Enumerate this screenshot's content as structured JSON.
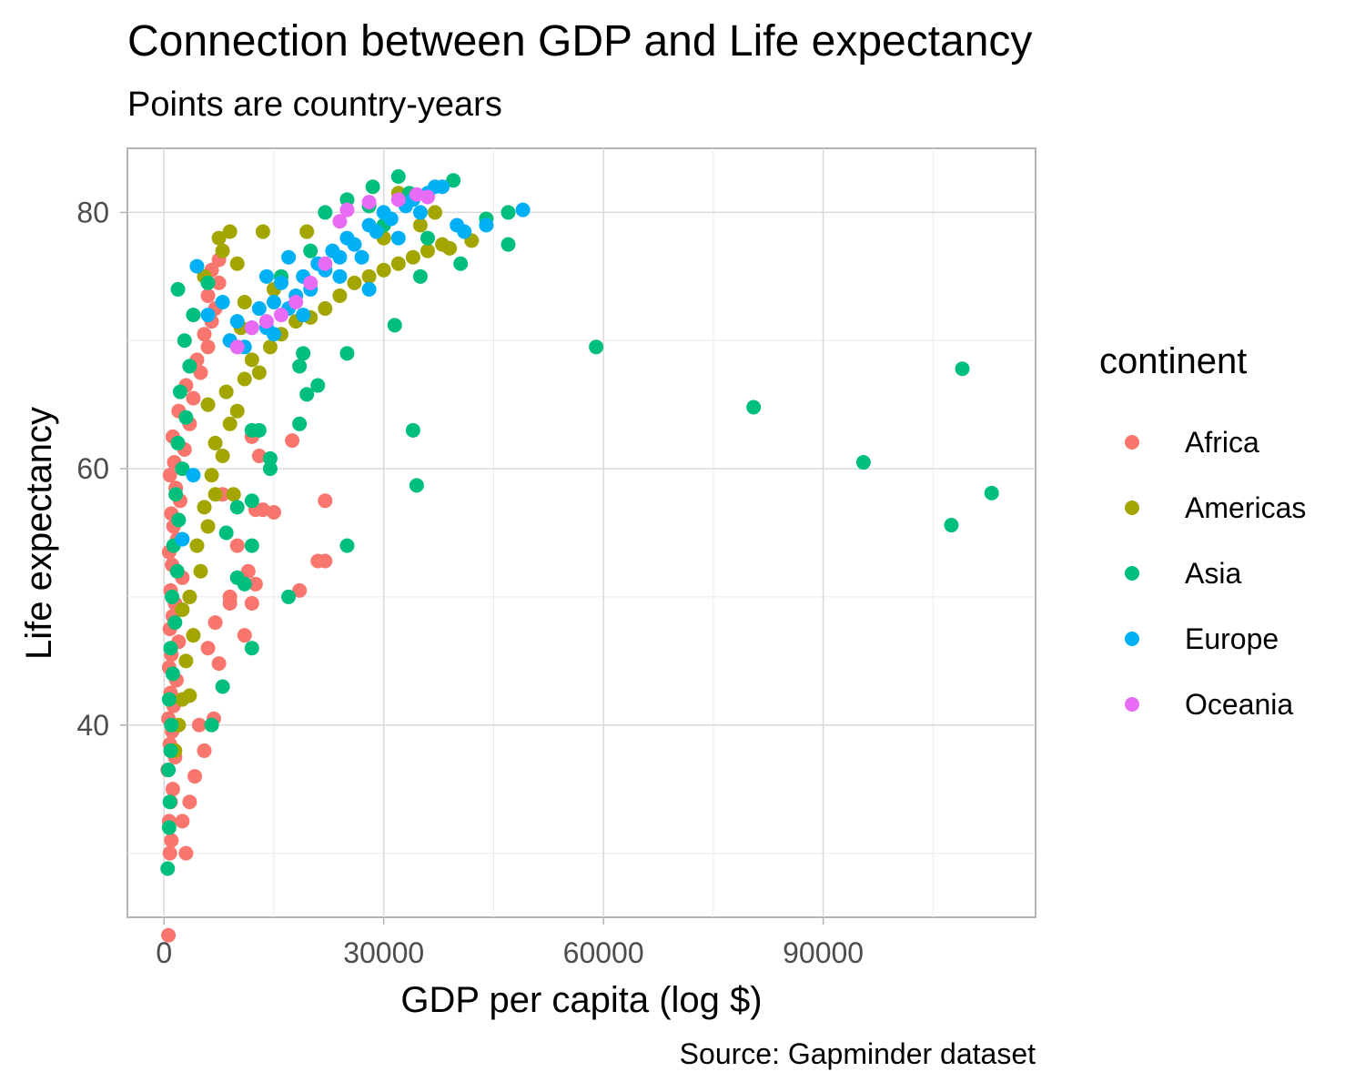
{
  "chart_data": {
    "type": "scatter",
    "title": "Connection between GDP and Life expectancy",
    "subtitle": "Points are country-years",
    "caption": "Source: Gapminder dataset",
    "xlabel": "GDP per capita (log $)",
    "ylabel": "Life expectancy",
    "xlim": [
      -5000,
      119000
    ],
    "ylim": [
      25,
      85
    ],
    "x_ticks": [
      0,
      30000,
      60000,
      90000
    ],
    "y_ticks": [
      40,
      60,
      80
    ],
    "grid": true,
    "legend": {
      "title": "continent",
      "position": "right"
    },
    "series": [
      {
        "name": "Africa",
        "color": "#F8766D",
        "points": [
          [
            600,
            23.6
          ],
          [
            800,
            30.0
          ],
          [
            1000,
            31.0
          ],
          [
            700,
            32.5
          ],
          [
            900,
            34.0
          ],
          [
            1200,
            35.0
          ],
          [
            500,
            36.5
          ],
          [
            1500,
            37.5
          ],
          [
            800,
            38.5
          ],
          [
            1100,
            39.5
          ],
          [
            600,
            40.5
          ],
          [
            1300,
            41.5
          ],
          [
            900,
            42.5
          ],
          [
            1700,
            43.5
          ],
          [
            700,
            44.5
          ],
          [
            1000,
            45.5
          ],
          [
            2000,
            46.5
          ],
          [
            800,
            47.5
          ],
          [
            1200,
            48.5
          ],
          [
            1500,
            49.5
          ],
          [
            900,
            50.5
          ],
          [
            2500,
            51.5
          ],
          [
            1100,
            52.5
          ],
          [
            700,
            53.5
          ],
          [
            1800,
            54.5
          ],
          [
            1300,
            55.5
          ],
          [
            1000,
            56.5
          ],
          [
            2200,
            57.5
          ],
          [
            1600,
            58.5
          ],
          [
            800,
            59.5
          ],
          [
            1400,
            60.5
          ],
          [
            2800,
            61.5
          ],
          [
            1200,
            62.5
          ],
          [
            3500,
            63.5
          ],
          [
            2000,
            64.5
          ],
          [
            4000,
            65.5
          ],
          [
            3000,
            66.5
          ],
          [
            5000,
            67.5
          ],
          [
            4500,
            68.5
          ],
          [
            6000,
            69.5
          ],
          [
            5500,
            70.5
          ],
          [
            6500,
            71.5
          ],
          [
            7000,
            72.5
          ],
          [
            6000,
            73.5
          ],
          [
            7500,
            74.5
          ],
          [
            6500,
            75.5
          ],
          [
            7500,
            76.3
          ],
          [
            3000,
            30.0
          ],
          [
            2500,
            32.5
          ],
          [
            3500,
            34.0
          ],
          [
            4200,
            36.0
          ],
          [
            5500,
            38.0
          ],
          [
            4800,
            40.0
          ],
          [
            6800,
            40.5
          ],
          [
            7500,
            44.8
          ],
          [
            6000,
            46.0
          ],
          [
            7000,
            48.0
          ],
          [
            9000,
            49.5
          ],
          [
            11000,
            47.0
          ],
          [
            12000,
            49.5
          ],
          [
            12500,
            51.0
          ],
          [
            11500,
            52.0
          ],
          [
            8000,
            58.0
          ],
          [
            12500,
            56.8
          ],
          [
            13500,
            56.8
          ],
          [
            15000,
            56.6
          ],
          [
            13000,
            61.0
          ],
          [
            17500,
            62.2
          ],
          [
            12000,
            62.5
          ],
          [
            18500,
            50.5
          ],
          [
            21000,
            52.8
          ],
          [
            22000,
            52.8
          ],
          [
            22000,
            57.5
          ],
          [
            10000,
            54.0
          ],
          [
            9000,
            50.0
          ]
        ]
      },
      {
        "name": "Americas",
        "color": "#A3A500",
        "points": [
          [
            1500,
            38.0
          ],
          [
            2000,
            40.0
          ],
          [
            2500,
            42.0
          ],
          [
            3500,
            42.3
          ],
          [
            3000,
            45.0
          ],
          [
            4000,
            47.0
          ],
          [
            2500,
            49.0
          ],
          [
            3500,
            50.0
          ],
          [
            5000,
            52.0
          ],
          [
            4500,
            54.0
          ],
          [
            6000,
            55.5
          ],
          [
            5500,
            57.0
          ],
          [
            7000,
            58.0
          ],
          [
            6500,
            59.5
          ],
          [
            9500,
            58.0
          ],
          [
            8000,
            61.0
          ],
          [
            7000,
            62.0
          ],
          [
            9000,
            63.5
          ],
          [
            10000,
            64.5
          ],
          [
            6000,
            65.0
          ],
          [
            8500,
            66.0
          ],
          [
            11000,
            67.0
          ],
          [
            13000,
            67.5
          ],
          [
            12000,
            68.5
          ],
          [
            14500,
            69.5
          ],
          [
            9000,
            70.0
          ],
          [
            16000,
            70.5
          ],
          [
            10500,
            71.0
          ],
          [
            18000,
            71.5
          ],
          [
            20000,
            71.8
          ],
          [
            22000,
            72.5
          ],
          [
            24000,
            73.5
          ],
          [
            11000,
            73.0
          ],
          [
            15000,
            74.0
          ],
          [
            26000,
            74.5
          ],
          [
            28000,
            75.0
          ],
          [
            30000,
            75.5
          ],
          [
            32000,
            76.0
          ],
          [
            34000,
            76.5
          ],
          [
            36000,
            77.0
          ],
          [
            38000,
            77.5
          ],
          [
            39000,
            77.2
          ],
          [
            42000,
            77.8
          ],
          [
            7500,
            78.0
          ],
          [
            9000,
            78.5
          ],
          [
            13500,
            78.5
          ],
          [
            19500,
            78.5
          ],
          [
            30000,
            78.0
          ],
          [
            35000,
            79.0
          ],
          [
            37000,
            80.0
          ],
          [
            32000,
            81.5
          ],
          [
            5500,
            75.0
          ],
          [
            8000,
            77.0
          ],
          [
            10000,
            76.0
          ]
        ]
      },
      {
        "name": "Asia",
        "color": "#00BF7D",
        "points": [
          [
            500,
            28.8
          ],
          [
            700,
            32.0
          ],
          [
            800,
            34.0
          ],
          [
            600,
            36.5
          ],
          [
            900,
            38.0
          ],
          [
            1000,
            40.0
          ],
          [
            700,
            42.0
          ],
          [
            1200,
            44.0
          ],
          [
            900,
            46.0
          ],
          [
            1500,
            48.0
          ],
          [
            1100,
            50.0
          ],
          [
            1800,
            52.0
          ],
          [
            1300,
            54.0
          ],
          [
            2000,
            56.0
          ],
          [
            1600,
            58.0
          ],
          [
            2500,
            60.0
          ],
          [
            1900,
            62.0
          ],
          [
            3000,
            64.0
          ],
          [
            2200,
            66.0
          ],
          [
            3500,
            68.0
          ],
          [
            2800,
            70.0
          ],
          [
            4000,
            72.0
          ],
          [
            1900,
            74.0
          ],
          [
            6000,
            74.5
          ],
          [
            6500,
            40.0
          ],
          [
            8000,
            43.0
          ],
          [
            12000,
            46.0
          ],
          [
            17000,
            50.0
          ],
          [
            11000,
            51.0
          ],
          [
            10000,
            51.5
          ],
          [
            12000,
            54.0
          ],
          [
            8500,
            55.0
          ],
          [
            10000,
            57.0
          ],
          [
            12000,
            57.5
          ],
          [
            14500,
            60.0
          ],
          [
            14500,
            60.8
          ],
          [
            12000,
            63.0
          ],
          [
            13000,
            63.0
          ],
          [
            18500,
            63.5
          ],
          [
            34000,
            63.0
          ],
          [
            34500,
            58.7
          ],
          [
            25000,
            54.0
          ],
          [
            19500,
            65.8
          ],
          [
            21000,
            66.5
          ],
          [
            18500,
            68.0
          ],
          [
            19000,
            69.0
          ],
          [
            25000,
            69.0
          ],
          [
            31500,
            71.2
          ],
          [
            35000,
            75.0
          ],
          [
            40500,
            76.0
          ],
          [
            47000,
            77.5
          ],
          [
            47000,
            80.0
          ],
          [
            44000,
            79.5
          ],
          [
            36000,
            78.0
          ],
          [
            30000,
            79.0
          ],
          [
            28000,
            80.5
          ],
          [
            25000,
            81.0
          ],
          [
            32000,
            82.8
          ],
          [
            33500,
            81.5
          ],
          [
            39500,
            82.5
          ],
          [
            28500,
            82.0
          ],
          [
            59000,
            69.5
          ],
          [
            80500,
            64.8
          ],
          [
            95500,
            60.5
          ],
          [
            107500,
            55.6
          ],
          [
            109000,
            67.8
          ],
          [
            113000,
            58.1
          ],
          [
            22000,
            80.0
          ],
          [
            20000,
            77.0
          ],
          [
            16000,
            75.0
          ]
        ]
      },
      {
        "name": "Europe",
        "color": "#00B0F6",
        "points": [
          [
            2500,
            54.5
          ],
          [
            4000,
            59.5
          ],
          [
            4500,
            75.8
          ],
          [
            6000,
            72.0
          ],
          [
            8000,
            73.0
          ],
          [
            9000,
            70.0
          ],
          [
            10000,
            71.5
          ],
          [
            11000,
            69.5
          ],
          [
            12000,
            71.0
          ],
          [
            13000,
            72.5
          ],
          [
            14000,
            71.0
          ],
          [
            15000,
            73.0
          ],
          [
            16000,
            74.5
          ],
          [
            17000,
            72.5
          ],
          [
            18000,
            73.5
          ],
          [
            19000,
            75.0
          ],
          [
            20000,
            74.0
          ],
          [
            21000,
            76.0
          ],
          [
            22000,
            75.5
          ],
          [
            23000,
            77.0
          ],
          [
            24000,
            76.5
          ],
          [
            25000,
            78.0
          ],
          [
            26000,
            77.5
          ],
          [
            27000,
            76.5
          ],
          [
            28000,
            79.0
          ],
          [
            29000,
            78.5
          ],
          [
            30000,
            80.0
          ],
          [
            31000,
            79.5
          ],
          [
            32000,
            78.0
          ],
          [
            33000,
            80.5
          ],
          [
            34000,
            81.0
          ],
          [
            35000,
            80.0
          ],
          [
            36000,
            81.5
          ],
          [
            37000,
            82.0
          ],
          [
            38000,
            82.0
          ],
          [
            40000,
            79.0
          ],
          [
            41000,
            78.5
          ],
          [
            44000,
            79.0
          ],
          [
            49000,
            80.2
          ],
          [
            28000,
            74.0
          ],
          [
            24000,
            75.0
          ],
          [
            19000,
            72.0
          ],
          [
            15000,
            70.5
          ],
          [
            14000,
            75.0
          ],
          [
            17000,
            76.5
          ]
        ]
      },
      {
        "name": "Oceania",
        "color": "#E76BF3",
        "points": [
          [
            10000,
            69.5
          ],
          [
            12000,
            71.0
          ],
          [
            14000,
            71.5
          ],
          [
            16000,
            72.0
          ],
          [
            18000,
            73.0
          ],
          [
            20000,
            74.5
          ],
          [
            22000,
            76.0
          ],
          [
            24000,
            79.3
          ],
          [
            25000,
            80.2
          ],
          [
            28000,
            80.8
          ],
          [
            32000,
            81.0
          ],
          [
            34500,
            81.4
          ],
          [
            36000,
            81.2
          ]
        ]
      }
    ]
  }
}
